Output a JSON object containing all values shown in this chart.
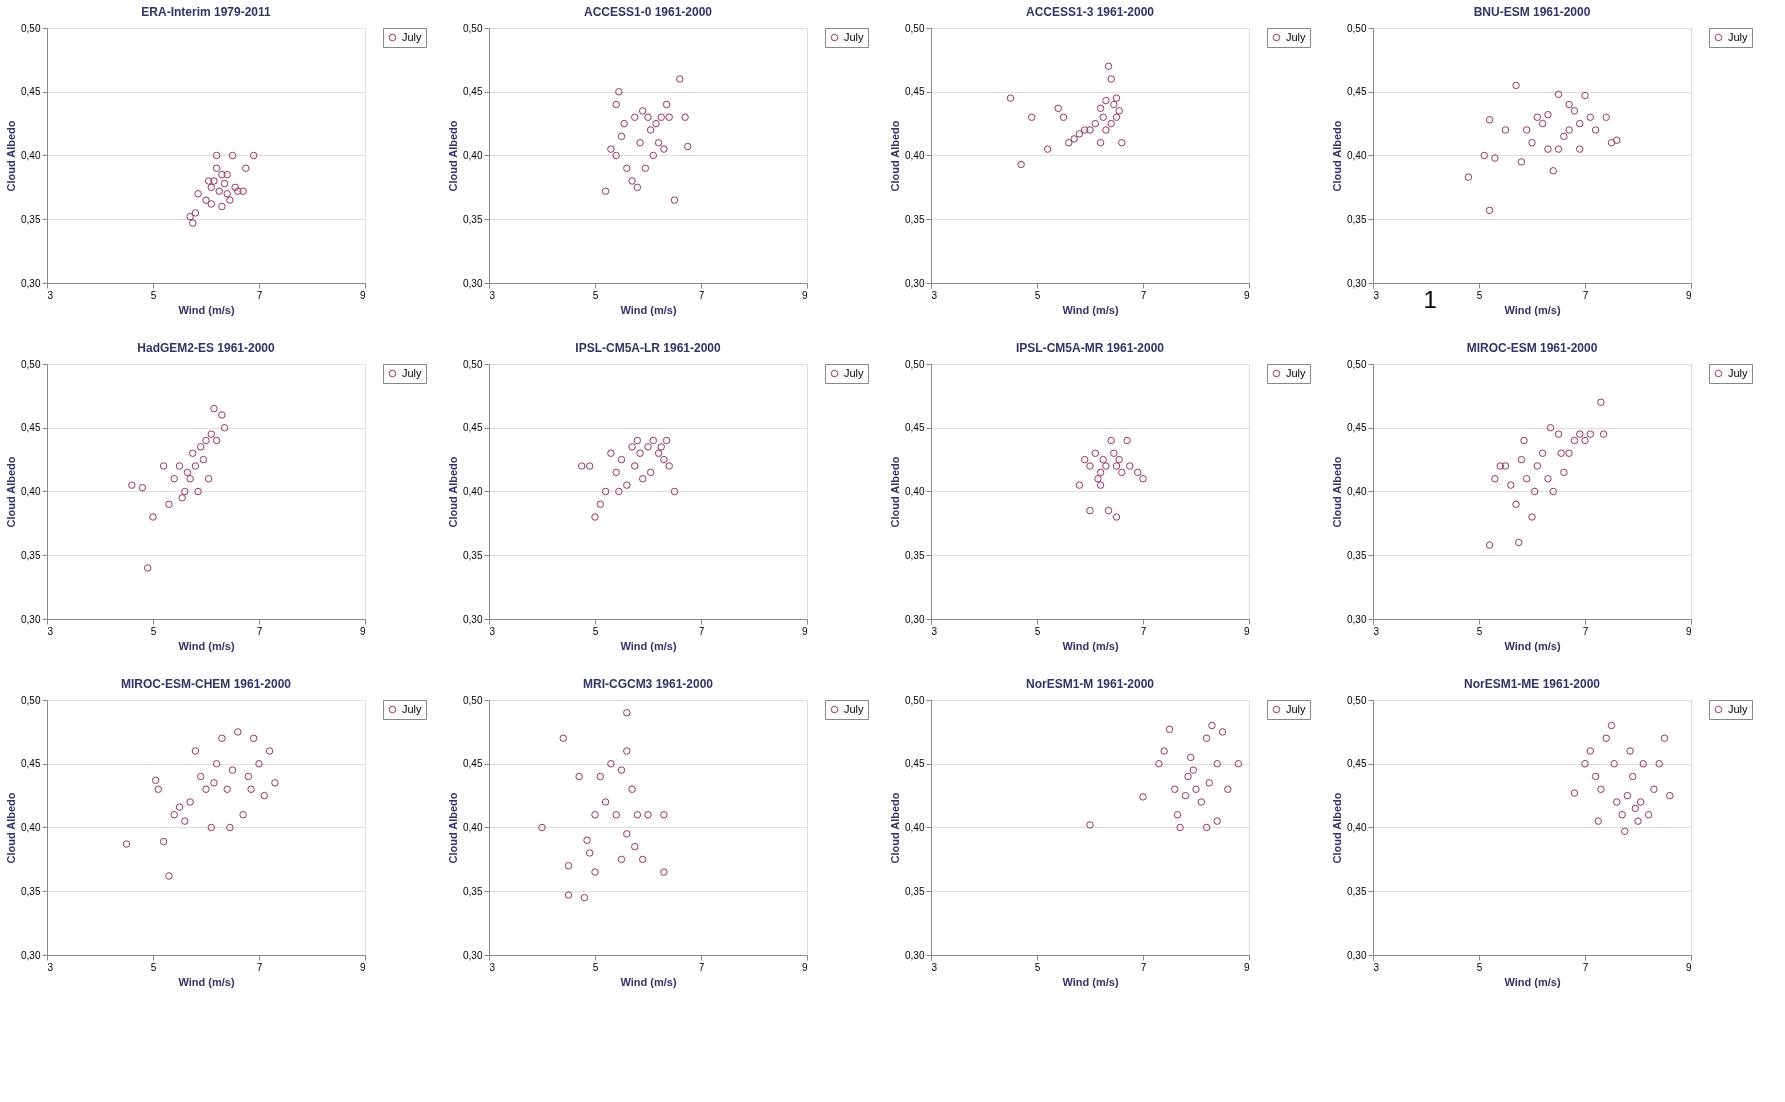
{
  "chart_data": [
    {
      "type": "scatter",
      "title": "ERA-Interim 1979-2011",
      "xlabel": "Wind (m/s)",
      "ylabel": "Cloud Albedo",
      "xlim": [
        3,
        9
      ],
      "xticks": [
        3,
        5,
        7,
        9
      ],
      "ylim": [
        0.3,
        0.5
      ],
      "yticks": [
        {
          "value": 0.3,
          "label": "0,30"
        },
        {
          "value": 0.35,
          "label": "0,35"
        },
        {
          "value": 0.4,
          "label": "0,40"
        },
        {
          "value": 0.45,
          "label": "0,45"
        },
        {
          "value": 0.5,
          "label": "0,50"
        }
      ],
      "grid": "y",
      "legend": "right",
      "marker": "circle",
      "series": [
        {
          "name": "July",
          "color": "#993366",
          "x": [
            5.7,
            5.75,
            5.8,
            5.85,
            6.0,
            6.1,
            6.15,
            6.2,
            6.2,
            6.25,
            6.3,
            6.3,
            6.35,
            6.4,
            6.45,
            6.5,
            6.55,
            6.6,
            6.7,
            6.75,
            6.9,
            6.05,
            6.4,
            6.1
          ],
          "values": [
            0.352,
            0.347,
            0.355,
            0.37,
            0.365,
            0.375,
            0.38,
            0.39,
            0.4,
            0.372,
            0.385,
            0.36,
            0.378,
            0.37,
            0.365,
            0.4,
            0.375,
            0.372,
            0.372,
            0.39,
            0.4,
            0.38,
            0.385,
            0.362
          ]
        }
      ]
    },
    {
      "type": "scatter",
      "title": "ACCESS1-0  1961-2000",
      "xlabel": "Wind (m/s)",
      "ylabel": "Cloud Albedo",
      "xlim": [
        3,
        9
      ],
      "xticks": [
        3,
        5,
        7,
        9
      ],
      "ylim": [
        0.3,
        0.5
      ],
      "yticks": [
        {
          "value": 0.3,
          "label": "0,30"
        },
        {
          "value": 0.35,
          "label": "0,35"
        },
        {
          "value": 0.4,
          "label": "0,40"
        },
        {
          "value": 0.45,
          "label": "0,45"
        },
        {
          "value": 0.5,
          "label": "0,50"
        }
      ],
      "grid": "y",
      "legend": "right",
      "marker": "circle",
      "series": [
        {
          "name": "July",
          "color": "#993366",
          "x": [
            5.2,
            5.3,
            5.4,
            5.45,
            5.4,
            5.5,
            5.55,
            5.6,
            5.7,
            5.75,
            5.8,
            5.85,
            5.9,
            6.0,
            6.05,
            6.1,
            6.15,
            6.2,
            6.3,
            6.35,
            6.4,
            6.5,
            6.6,
            6.7,
            6.75,
            5.95,
            6.25
          ],
          "values": [
            0.372,
            0.405,
            0.4,
            0.45,
            0.44,
            0.415,
            0.425,
            0.39,
            0.38,
            0.43,
            0.375,
            0.41,
            0.435,
            0.43,
            0.42,
            0.4,
            0.425,
            0.41,
            0.405,
            0.44,
            0.43,
            0.365,
            0.46,
            0.43,
            0.407,
            0.39,
            0.43
          ]
        }
      ]
    },
    {
      "type": "scatter",
      "title": "ACCESS1-3  1961-2000",
      "xlabel": "Wind (m/s)",
      "ylabel": "Cloud Albedo",
      "xlim": [
        3,
        9
      ],
      "xticks": [
        3,
        5,
        7,
        9
      ],
      "ylim": [
        0.3,
        0.5
      ],
      "yticks": [
        {
          "value": 0.3,
          "label": "0,30"
        },
        {
          "value": 0.35,
          "label": "0,35"
        },
        {
          "value": 0.4,
          "label": "0,40"
        },
        {
          "value": 0.45,
          "label": "0,45"
        },
        {
          "value": 0.5,
          "label": "0,50"
        }
      ],
      "grid": "y",
      "legend": "right",
      "marker": "circle",
      "series": [
        {
          "name": "July",
          "color": "#993366",
          "x": [
            4.5,
            4.7,
            4.9,
            5.2,
            5.4,
            5.5,
            5.6,
            5.7,
            5.8,
            5.9,
            6.0,
            6.1,
            6.2,
            6.25,
            6.3,
            6.35,
            6.4,
            6.45,
            6.5,
            6.5,
            6.55,
            6.6,
            6.3,
            6.4,
            6.2
          ],
          "values": [
            0.445,
            0.393,
            0.43,
            0.405,
            0.437,
            0.43,
            0.41,
            0.413,
            0.417,
            0.42,
            0.42,
            0.425,
            0.437,
            0.43,
            0.42,
            0.47,
            0.46,
            0.44,
            0.445,
            0.43,
            0.435,
            0.41,
            0.443,
            0.425,
            0.41
          ]
        }
      ]
    },
    {
      "type": "scatter",
      "title": "BNU-ESM 1961-2000",
      "xlabel": "Wind (m/s)",
      "ylabel": "Cloud Albedo",
      "annotations": [
        "1"
      ],
      "xlim": [
        3,
        9
      ],
      "xticks": [
        3,
        5,
        7,
        9
      ],
      "ylim": [
        0.3,
        0.5
      ],
      "yticks": [
        {
          "value": 0.3,
          "label": "0,30"
        },
        {
          "value": 0.35,
          "label": "0,35"
        },
        {
          "value": 0.4,
          "label": "0,40"
        },
        {
          "value": 0.45,
          "label": "0,45"
        },
        {
          "value": 0.5,
          "label": "0,50"
        }
      ],
      "grid": "y",
      "legend": "right",
      "marker": "circle",
      "series": [
        {
          "name": "July",
          "color": "#993366",
          "x": [
            4.8,
            5.1,
            5.2,
            5.2,
            5.3,
            5.5,
            5.7,
            5.8,
            5.9,
            6.0,
            6.1,
            6.2,
            6.3,
            6.4,
            6.5,
            6.5,
            6.6,
            6.7,
            6.8,
            6.9,
            6.9,
            7.0,
            7.1,
            7.2,
            7.4,
            7.5,
            7.6,
            6.3,
            6.7
          ],
          "values": [
            0.383,
            0.4,
            0.357,
            0.428,
            0.398,
            0.42,
            0.455,
            0.395,
            0.42,
            0.41,
            0.43,
            0.425,
            0.432,
            0.388,
            0.448,
            0.405,
            0.415,
            0.42,
            0.435,
            0.425,
            0.405,
            0.447,
            0.43,
            0.42,
            0.43,
            0.41,
            0.412,
            0.405,
            0.44
          ]
        }
      ]
    },
    {
      "type": "scatter",
      "title": "HadGEM2-ES  1961-2000",
      "xlabel": "Wind (m/s)",
      "ylabel": "Cloud Albedo",
      "xlim": [
        3,
        9
      ],
      "xticks": [
        3,
        5,
        7,
        9
      ],
      "ylim": [
        0.3,
        0.5
      ],
      "yticks": [
        {
          "value": 0.3,
          "label": "0,30"
        },
        {
          "value": 0.35,
          "label": "0,35"
        },
        {
          "value": 0.4,
          "label": "0,40"
        },
        {
          "value": 0.45,
          "label": "0,45"
        },
        {
          "value": 0.5,
          "label": "0,50"
        }
      ],
      "grid": "y",
      "legend": "right",
      "marker": "circle",
      "series": [
        {
          "name": "July",
          "color": "#993366",
          "x": [
            4.6,
            4.8,
            4.9,
            5.0,
            5.2,
            5.3,
            5.4,
            5.5,
            5.55,
            5.6,
            5.7,
            5.75,
            5.8,
            5.85,
            5.9,
            6.0,
            6.05,
            6.1,
            6.15,
            6.2,
            6.3,
            6.35,
            5.65,
            5.95
          ],
          "values": [
            0.405,
            0.403,
            0.34,
            0.38,
            0.42,
            0.39,
            0.41,
            0.42,
            0.395,
            0.4,
            0.41,
            0.43,
            0.42,
            0.4,
            0.435,
            0.44,
            0.41,
            0.445,
            0.465,
            0.44,
            0.46,
            0.45,
            0.415,
            0.425
          ]
        }
      ]
    },
    {
      "type": "scatter",
      "title": "IPSL-CM5A-LR  1961-2000",
      "xlabel": "Wind (m/s)",
      "ylabel": "Cloud Albedo",
      "xlim": [
        3,
        9
      ],
      "xticks": [
        3,
        5,
        7,
        9
      ],
      "ylim": [
        0.3,
        0.5
      ],
      "yticks": [
        {
          "value": 0.3,
          "label": "0,30"
        },
        {
          "value": 0.35,
          "label": "0,35"
        },
        {
          "value": 0.4,
          "label": "0,40"
        },
        {
          "value": 0.45,
          "label": "0,45"
        },
        {
          "value": 0.5,
          "label": "0,50"
        }
      ],
      "grid": "y",
      "legend": "right",
      "marker": "circle",
      "series": [
        {
          "name": "July",
          "color": "#993366",
          "x": [
            4.75,
            4.9,
            5.0,
            5.1,
            5.2,
            5.3,
            5.4,
            5.45,
            5.5,
            5.6,
            5.7,
            5.75,
            5.8,
            5.9,
            6.0,
            6.05,
            6.1,
            6.2,
            6.3,
            6.35,
            6.4,
            6.5,
            5.85,
            6.25
          ],
          "values": [
            0.42,
            0.42,
            0.38,
            0.39,
            0.4,
            0.43,
            0.415,
            0.4,
            0.425,
            0.405,
            0.435,
            0.42,
            0.44,
            0.41,
            0.435,
            0.415,
            0.44,
            0.43,
            0.425,
            0.44,
            0.42,
            0.4,
            0.43,
            0.435
          ]
        }
      ]
    },
    {
      "type": "scatter",
      "title": "IPSL-CM5A-MR  1961-2000",
      "xlabel": "Wind (m/s)",
      "ylabel": "Cloud Albedo",
      "xlim": [
        3,
        9
      ],
      "xticks": [
        3,
        5,
        7,
        9
      ],
      "ylim": [
        0.3,
        0.5
      ],
      "yticks": [
        {
          "value": 0.3,
          "label": "0,30"
        },
        {
          "value": 0.35,
          "label": "0,35"
        },
        {
          "value": 0.4,
          "label": "0,40"
        },
        {
          "value": 0.45,
          "label": "0,45"
        },
        {
          "value": 0.5,
          "label": "0,50"
        }
      ],
      "grid": "y",
      "legend": "right",
      "marker": "circle",
      "series": [
        {
          "name": "July",
          "color": "#993366",
          "x": [
            5.8,
            5.9,
            6.0,
            6.0,
            6.1,
            6.15,
            6.2,
            6.25,
            6.3,
            6.35,
            6.4,
            6.45,
            6.5,
            6.55,
            6.6,
            6.7,
            6.75,
            6.9,
            7.0,
            6.2,
            6.5
          ],
          "values": [
            0.405,
            0.425,
            0.42,
            0.385,
            0.43,
            0.41,
            0.415,
            0.425,
            0.42,
            0.385,
            0.44,
            0.43,
            0.38,
            0.425,
            0.415,
            0.44,
            0.42,
            0.415,
            0.41,
            0.405,
            0.42
          ]
        }
      ]
    },
    {
      "type": "scatter",
      "title": "MIROC-ESM  1961-2000",
      "xlabel": "Wind (m/s)",
      "ylabel": "Cloud Albedo",
      "xlim": [
        3,
        9
      ],
      "xticks": [
        3,
        5,
        7,
        9
      ],
      "ylim": [
        0.3,
        0.5
      ],
      "yticks": [
        {
          "value": 0.3,
          "label": "0,30"
        },
        {
          "value": 0.35,
          "label": "0,35"
        },
        {
          "value": 0.4,
          "label": "0,40"
        },
        {
          "value": 0.45,
          "label": "0,45"
        },
        {
          "value": 0.5,
          "label": "0,50"
        }
      ],
      "grid": "y",
      "legend": "right",
      "marker": "circle",
      "series": [
        {
          "name": "July",
          "color": "#993366",
          "x": [
            5.2,
            5.3,
            5.4,
            5.5,
            5.6,
            5.7,
            5.75,
            5.8,
            5.85,
            5.9,
            6.0,
            6.05,
            6.1,
            6.2,
            6.3,
            6.35,
            6.4,
            6.5,
            6.6,
            6.7,
            6.8,
            6.9,
            7.0,
            7.1,
            7.3,
            7.35,
            6.55
          ],
          "values": [
            0.358,
            0.41,
            0.42,
            0.42,
            0.405,
            0.39,
            0.36,
            0.425,
            0.44,
            0.41,
            0.38,
            0.4,
            0.42,
            0.43,
            0.41,
            0.45,
            0.4,
            0.445,
            0.415,
            0.43,
            0.44,
            0.445,
            0.44,
            0.445,
            0.47,
            0.445,
            0.43
          ]
        }
      ]
    },
    {
      "type": "scatter",
      "title": "MIROC-ESM-CHEM  1961-2000",
      "xlabel": "Wind (m/s)",
      "ylabel": "Cloud Albedo",
      "xlim": [
        3,
        9
      ],
      "xticks": [
        3,
        5,
        7,
        9
      ],
      "ylim": [
        0.3,
        0.5
      ],
      "yticks": [
        {
          "value": 0.3,
          "label": "0,30"
        },
        {
          "value": 0.35,
          "label": "0,35"
        },
        {
          "value": 0.4,
          "label": "0,40"
        },
        {
          "value": 0.45,
          "label": "0,45"
        },
        {
          "value": 0.5,
          "label": "0,50"
        }
      ],
      "grid": "y",
      "legend": "right",
      "marker": "circle",
      "series": [
        {
          "name": "July",
          "color": "#993366",
          "x": [
            4.5,
            5.05,
            5.1,
            5.2,
            5.3,
            5.4,
            5.5,
            5.6,
            5.7,
            5.8,
            5.9,
            6.0,
            6.1,
            6.15,
            6.2,
            6.3,
            6.4,
            6.5,
            6.6,
            6.7,
            6.8,
            6.9,
            7.0,
            7.1,
            7.2,
            7.3,
            6.45,
            6.85
          ],
          "values": [
            0.387,
            0.437,
            0.43,
            0.389,
            0.362,
            0.41,
            0.416,
            0.405,
            0.42,
            0.46,
            0.44,
            0.43,
            0.4,
            0.435,
            0.45,
            0.47,
            0.43,
            0.445,
            0.475,
            0.41,
            0.44,
            0.47,
            0.45,
            0.425,
            0.46,
            0.435,
            0.4,
            0.43
          ]
        }
      ]
    },
    {
      "type": "scatter",
      "title": "MRI-CGCM3  1961-2000",
      "xlabel": "Wind (m/s)",
      "ylabel": "Cloud Albedo",
      "xlim": [
        3,
        9
      ],
      "xticks": [
        3,
        5,
        7,
        9
      ],
      "ylim": [
        0.3,
        0.5
      ],
      "yticks": [
        {
          "value": 0.3,
          "label": "0,30"
        },
        {
          "value": 0.35,
          "label": "0,35"
        },
        {
          "value": 0.4,
          "label": "0,40"
        },
        {
          "value": 0.45,
          "label": "0,45"
        },
        {
          "value": 0.5,
          "label": "0,50"
        }
      ],
      "grid": "y",
      "legend": "right",
      "marker": "circle",
      "series": [
        {
          "name": "July",
          "color": "#993366",
          "x": [
            4.0,
            4.4,
            4.5,
            4.5,
            4.8,
            4.85,
            4.9,
            5.0,
            5.0,
            5.1,
            5.2,
            5.3,
            5.4,
            5.5,
            5.6,
            5.6,
            5.7,
            5.75,
            5.8,
            5.9,
            6.0,
            6.3,
            6.3,
            5.5,
            5.6,
            4.7
          ],
          "values": [
            0.4,
            0.47,
            0.37,
            0.347,
            0.345,
            0.39,
            0.38,
            0.365,
            0.41,
            0.44,
            0.42,
            0.45,
            0.41,
            0.375,
            0.49,
            0.46,
            0.43,
            0.385,
            0.41,
            0.375,
            0.41,
            0.365,
            0.41,
            0.445,
            0.395,
            0.44
          ]
        }
      ]
    },
    {
      "type": "scatter",
      "title": "NorESM1-M  1961-2000",
      "xlabel": "Wind (m/s)",
      "ylabel": "Cloud Albedo",
      "xlim": [
        3,
        9
      ],
      "xticks": [
        3,
        5,
        7,
        9
      ],
      "ylim": [
        0.3,
        0.5
      ],
      "yticks": [
        {
          "value": 0.3,
          "label": "0,30"
        },
        {
          "value": 0.35,
          "label": "0,35"
        },
        {
          "value": 0.4,
          "label": "0,40"
        },
        {
          "value": 0.45,
          "label": "0,45"
        },
        {
          "value": 0.5,
          "label": "0,50"
        }
      ],
      "grid": "y",
      "legend": "right",
      "marker": "circle",
      "series": [
        {
          "name": "July",
          "color": "#993366",
          "x": [
            6.0,
            7.0,
            7.3,
            7.4,
            7.5,
            7.6,
            7.65,
            7.7,
            7.8,
            7.85,
            7.9,
            8.0,
            8.1,
            8.2,
            8.2,
            8.3,
            8.4,
            8.4,
            8.5,
            8.6,
            8.8,
            7.95,
            8.25
          ],
          "values": [
            0.402,
            0.424,
            0.45,
            0.46,
            0.477,
            0.43,
            0.41,
            0.4,
            0.425,
            0.44,
            0.455,
            0.43,
            0.42,
            0.47,
            0.4,
            0.48,
            0.45,
            0.405,
            0.475,
            0.43,
            0.45,
            0.445,
            0.435
          ]
        }
      ]
    },
    {
      "type": "scatter",
      "title": "NorESM1-ME  1961-2000",
      "xlabel": "Wind (m/s)",
      "ylabel": "Cloud Albedo",
      "xlim": [
        3,
        9
      ],
      "xticks": [
        3,
        5,
        7,
        9
      ],
      "ylim": [
        0.3,
        0.5
      ],
      "yticks": [
        {
          "value": 0.3,
          "label": "0,30"
        },
        {
          "value": 0.35,
          "label": "0,35"
        },
        {
          "value": 0.4,
          "label": "0,40"
        },
        {
          "value": 0.45,
          "label": "0,45"
        },
        {
          "value": 0.5,
          "label": "0,50"
        }
      ],
      "grid": "y",
      "legend": "right",
      "marker": "circle",
      "series": [
        {
          "name": "July",
          "color": "#993366",
          "x": [
            6.8,
            7.0,
            7.1,
            7.2,
            7.25,
            7.3,
            7.4,
            7.5,
            7.55,
            7.6,
            7.7,
            7.8,
            7.85,
            7.9,
            8.0,
            8.05,
            8.1,
            8.2,
            8.3,
            8.4,
            8.5,
            8.6,
            7.75,
            7.95
          ],
          "values": [
            0.427,
            0.45,
            0.46,
            0.44,
            0.405,
            0.43,
            0.47,
            0.48,
            0.45,
            0.42,
            0.41,
            0.425,
            0.46,
            0.44,
            0.405,
            0.42,
            0.45,
            0.41,
            0.43,
            0.45,
            0.47,
            0.425,
            0.397,
            0.415
          ]
        }
      ]
    }
  ]
}
